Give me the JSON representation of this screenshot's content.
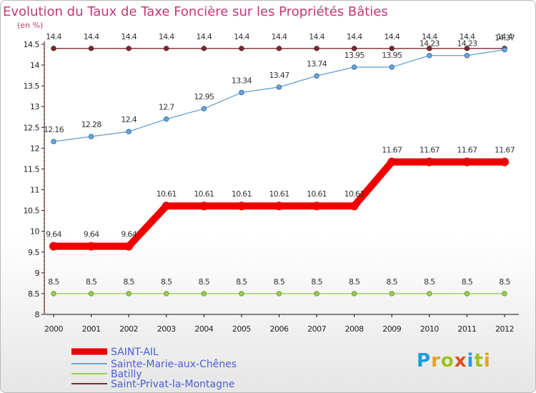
{
  "chart_data": {
    "type": "line",
    "title": "Evolution du Taux de Taxe Foncière sur les Propriétés Bâties",
    "unit_label": "(en %)",
    "x": [
      "2000",
      "2001",
      "2002",
      "2003",
      "2004",
      "2005",
      "2006",
      "2007",
      "2008",
      "2009",
      "2010",
      "2011",
      "2012"
    ],
    "ylim": [
      8,
      14.5
    ],
    "yticks": [
      "8",
      "8.5",
      "9",
      "9.5",
      "10",
      "10.5",
      "11",
      "11.5",
      "12",
      "12.5",
      "13",
      "13.5",
      "14",
      "14.5"
    ],
    "grid": false,
    "legend_position": "bottom-left",
    "series": [
      {
        "name": "SAINT-AIL",
        "color": "#ee0000",
        "values": [
          9.64,
          9.64,
          9.64,
          10.61,
          10.61,
          10.61,
          10.61,
          10.61,
          10.61,
          11.67,
          11.67,
          11.67,
          11.67
        ],
        "labels": [
          "9.64",
          "9.64",
          "9.64",
          "10.61",
          "10.61",
          "10.61",
          "10.61",
          "10.61",
          "10.61",
          "11.67",
          "11.67",
          "11.67",
          "11.67"
        ]
      },
      {
        "name": "Sainte-Marie-aux-Chênes",
        "color": "#6ea5d6",
        "values": [
          12.16,
          12.28,
          12.4,
          12.7,
          12.95,
          13.34,
          13.47,
          13.74,
          13.95,
          13.95,
          14.23,
          14.23,
          14.37
        ],
        "labels": [
          "12.16",
          "12.28",
          "12.4",
          "12.7",
          "12.95",
          "13.34",
          "13.47",
          "13.74",
          "13.95",
          "13.95",
          "14.23",
          "14.23",
          "14.37"
        ]
      },
      {
        "name": "Batilly",
        "color": "#99cc55",
        "values": [
          8.5,
          8.5,
          8.5,
          8.5,
          8.5,
          8.5,
          8.5,
          8.5,
          8.5,
          8.5,
          8.5,
          8.5,
          8.5
        ],
        "labels": [
          "8.5",
          "8.5",
          "8.5",
          "8.5",
          "8.5",
          "8.5",
          "8.5",
          "8.5",
          "8.5",
          "8.5",
          "8.5",
          "8.5",
          "8.5"
        ]
      },
      {
        "name": "Saint-Privat-la-Montagne",
        "color": "#7a2b33",
        "values": [
          14.4,
          14.4,
          14.4,
          14.4,
          14.4,
          14.4,
          14.4,
          14.4,
          14.4,
          14.4,
          14.4,
          14.4,
          14.4
        ],
        "labels": [
          "14.4",
          "14.4",
          "14.4",
          "14.4",
          "14.4",
          "14.4",
          "14.4",
          "14.4",
          "14.4",
          "14.4",
          "14.4",
          "14.4",
          "14.4"
        ]
      }
    ]
  },
  "logo": {
    "letters": [
      "P",
      "r",
      "o",
      "x",
      "i",
      "t",
      "i"
    ]
  }
}
